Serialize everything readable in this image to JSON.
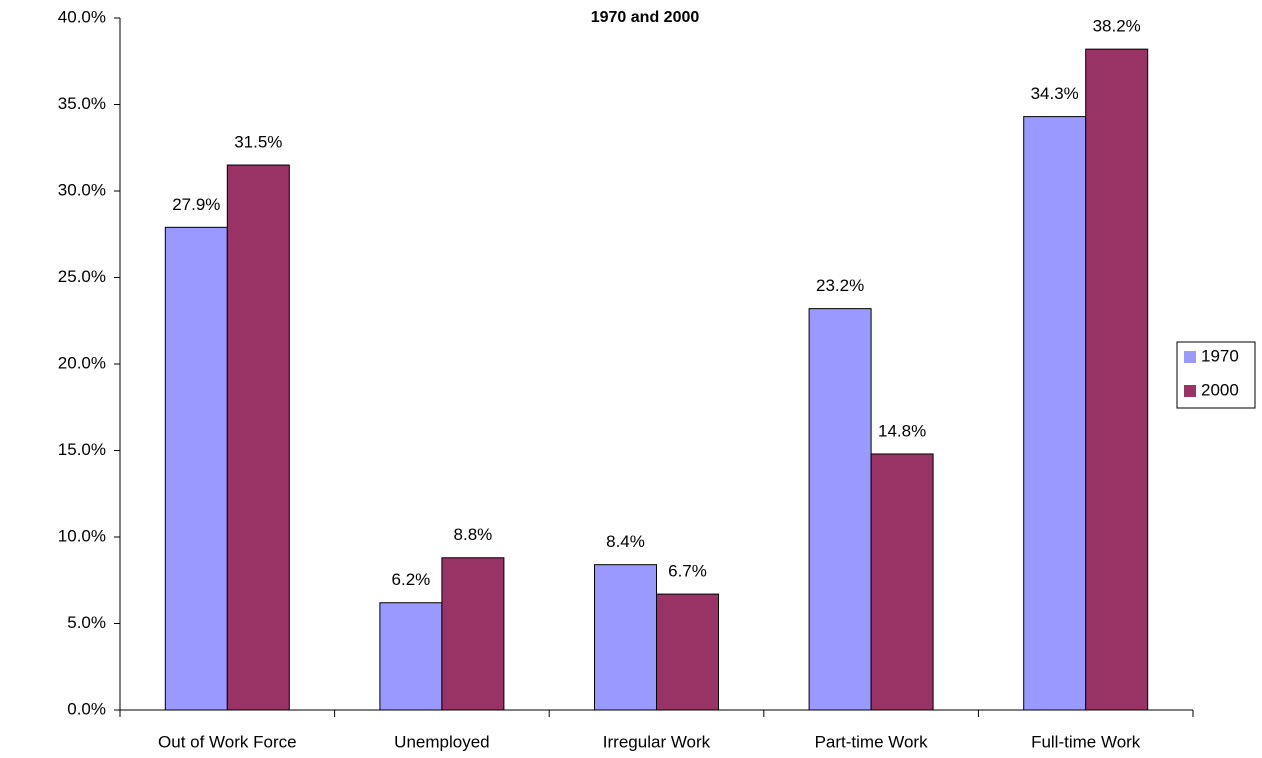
{
  "chart_data": {
    "type": "bar",
    "title": "1970 and 2000",
    "categories": [
      "Out of Work Force",
      "Unemployed",
      "Irregular Work",
      "Part-time Work",
      "Full-time Work"
    ],
    "series": [
      {
        "name": "1970",
        "color": "#9999ff",
        "values": [
          27.9,
          6.2,
          8.4,
          23.2,
          34.3
        ],
        "value_labels": [
          "27.9%",
          "6.2%",
          "8.4%",
          "23.2%",
          "34.3%"
        ]
      },
      {
        "name": "2000",
        "color": "#993366",
        "values": [
          31.5,
          8.8,
          6.7,
          14.8,
          38.2
        ],
        "value_labels": [
          "31.5%",
          "8.8%",
          "6.7%",
          "14.8%",
          "38.2%"
        ]
      }
    ],
    "ylim": [
      0,
      40
    ],
    "yticks": [
      {
        "value": 0,
        "label": "0.0%"
      },
      {
        "value": 5,
        "label": "5.0%"
      },
      {
        "value": 10,
        "label": "10.0%"
      },
      {
        "value": 15,
        "label": "15.0%"
      },
      {
        "value": 20,
        "label": "20.0%"
      },
      {
        "value": 25,
        "label": "25.0%"
      },
      {
        "value": 30,
        "label": "30.0%"
      },
      {
        "value": 35,
        "label": "35.0%"
      },
      {
        "value": 40,
        "label": "40.0%"
      }
    ],
    "legend": "right"
  }
}
